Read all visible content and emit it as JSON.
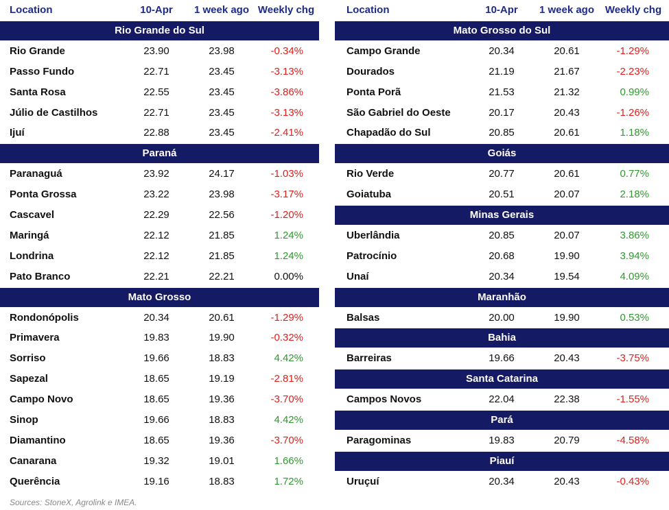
{
  "tables": [
    {
      "header": [
        "Location",
        "10-Apr",
        "1 week ago",
        "Weekly chg"
      ],
      "groups": [
        {
          "title": "Rio Grande do Sul",
          "rows": [
            [
              "Rio Grande",
              "23.90",
              "23.98",
              "-0.34%"
            ],
            [
              "Passo Fundo",
              "22.71",
              "23.45",
              "-3.13%"
            ],
            [
              "Santa Rosa",
              "22.55",
              "23.45",
              "-3.86%"
            ],
            [
              "Júlio de Castilhos",
              "22.71",
              "23.45",
              "-3.13%"
            ],
            [
              "Ijuí",
              "22.88",
              "23.45",
              "-2.41%"
            ]
          ]
        },
        {
          "title": "Paraná",
          "rows": [
            [
              "Paranaguá",
              "23.92",
              "24.17",
              "-1.03%"
            ],
            [
              "Ponta Grossa",
              "23.22",
              "23.98",
              "-3.17%"
            ],
            [
              "Cascavel",
              "22.29",
              "22.56",
              "-1.20%"
            ],
            [
              "Maringá",
              "22.12",
              "21.85",
              "1.24%"
            ],
            [
              "Londrina",
              "22.12",
              "21.85",
              "1.24%"
            ],
            [
              "Pato Branco",
              "22.21",
              "22.21",
              "0.00%"
            ]
          ]
        },
        {
          "title": "Mato Grosso",
          "rows": [
            [
              "Rondonópolis",
              "20.34",
              "20.61",
              "-1.29%"
            ],
            [
              "Primavera",
              "19.83",
              "19.90",
              "-0.32%"
            ],
            [
              "Sorriso",
              "19.66",
              "18.83",
              "4.42%"
            ],
            [
              "Sapezal",
              "18.65",
              "19.19",
              "-2.81%"
            ],
            [
              "Campo Novo",
              "18.65",
              "19.36",
              "-3.70%"
            ],
            [
              "Sinop",
              "19.66",
              "18.83",
              "4.42%"
            ],
            [
              "Diamantino",
              "18.65",
              "19.36",
              "-3.70%"
            ],
            [
              "Canarana",
              "19.32",
              "19.01",
              "1.66%"
            ],
            [
              "Querência",
              "19.16",
              "18.83",
              "1.72%"
            ]
          ]
        }
      ]
    },
    {
      "header": [
        "Location",
        "10-Apr",
        "1 week ago",
        "Weekly chg"
      ],
      "groups": [
        {
          "title": "Mato Grosso do Sul",
          "rows": [
            [
              "Campo Grande",
              "20.34",
              "20.61",
              "-1.29%"
            ],
            [
              "Dourados",
              "21.19",
              "21.67",
              "-2.23%"
            ],
            [
              "Ponta Porã",
              "21.53",
              "21.32",
              "0.99%"
            ],
            [
              "São Gabriel do Oeste",
              "20.17",
              "20.43",
              "-1.26%"
            ],
            [
              "Chapadão do Sul",
              "20.85",
              "20.61",
              "1.18%"
            ]
          ]
        },
        {
          "title": "Goiás",
          "rows": [
            [
              "Rio Verde",
              "20.77",
              "20.61",
              "0.77%"
            ],
            [
              "Goiatuba",
              "20.51",
              "20.07",
              "2.18%"
            ]
          ]
        },
        {
          "title": "Minas Gerais",
          "rows": [
            [
              "Uberlândia",
              "20.85",
              "20.07",
              "3.86%"
            ],
            [
              "Patrocínio",
              "20.68",
              "19.90",
              "3.94%"
            ],
            [
              "Unaí",
              "20.34",
              "19.54",
              "4.09%"
            ]
          ]
        },
        {
          "title": "Maranhão",
          "rows": [
            [
              "Balsas",
              "20.00",
              "19.90",
              "0.53%"
            ]
          ]
        },
        {
          "title": "Bahia",
          "rows": [
            [
              "Barreiras",
              "19.66",
              "20.43",
              "-3.75%"
            ]
          ]
        },
        {
          "title": "Santa Catarina",
          "rows": [
            [
              "Campos Novos",
              "22.04",
              "22.38",
              "-1.55%"
            ]
          ]
        },
        {
          "title": "Pará",
          "rows": [
            [
              "Paragominas",
              "19.83",
              "20.79",
              "-4.58%"
            ]
          ]
        },
        {
          "title": "Piauí",
          "rows": [
            [
              "Uruçuí",
              "20.34",
              "20.43",
              "-0.43%"
            ]
          ]
        }
      ]
    }
  ],
  "source": "Sources: StoneX, Agrolink e IMEA."
}
